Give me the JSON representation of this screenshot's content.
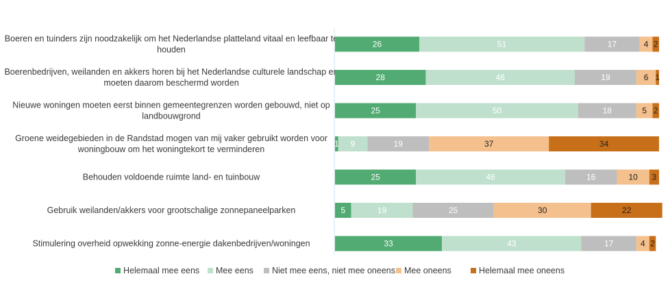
{
  "chart_data": {
    "type": "bar",
    "orientation": "horizontal",
    "stacked": true,
    "categories": [
      [
        "Boeren en tuinders zijn noodzakelijk om het Nederlandse platteland vitaal en leefbaar te",
        "houden"
      ],
      [
        "Boerenbedrijven, weilanden en akkers horen bij het Nederlandse culturele landschap en",
        "moeten daarom beschermd worden"
      ],
      [
        "Nieuwe woningen moeten eerst binnen gemeentegrenzen worden gebouwd, niet op",
        "landbouwgrond"
      ],
      [
        "Groene weidegebieden in de Randstad mogen van mij vaker gebruikt worden voor",
        "woningbouw om het woningtekort te verminderen"
      ],
      [
        "Behouden voldoende ruimte land- en tuinbouw"
      ],
      [
        "Gebruik weilanden/akkers voor grootschalige zonnepaneelparken"
      ],
      [
        "Stimulering overheid opwekking zonne-energie dakenbedrijven/woningen"
      ]
    ],
    "series": [
      {
        "name": "Helemaal mee eens",
        "color": "#52ab72",
        "label_color": "#ffffff",
        "values": [
          26,
          28,
          25,
          1,
          25,
          5,
          33
        ]
      },
      {
        "name": "Mee eens",
        "color": "#bfe0cd",
        "label_color": "#ffffff",
        "values": [
          51,
          46,
          50,
          9,
          46,
          19,
          43
        ]
      },
      {
        "name": "Niet mee eens, niet mee oneens",
        "color": "#bebebe",
        "label_color": "#ffffff",
        "values": [
          17,
          19,
          18,
          19,
          16,
          25,
          17
        ]
      },
      {
        "name": "Mee oneens",
        "color": "#f4c08d",
        "label_color": "#222222",
        "values": [
          4,
          6,
          5,
          37,
          10,
          30,
          4
        ]
      },
      {
        "name": "Helemaal mee  oneens",
        "color": "#c86f1a",
        "label_color": "#222222",
        "values": [
          2,
          1,
          2,
          34,
          3,
          22,
          2
        ]
      }
    ],
    "xlim": [
      0,
      100
    ],
    "legend_position": "bottom",
    "grid": false
  }
}
